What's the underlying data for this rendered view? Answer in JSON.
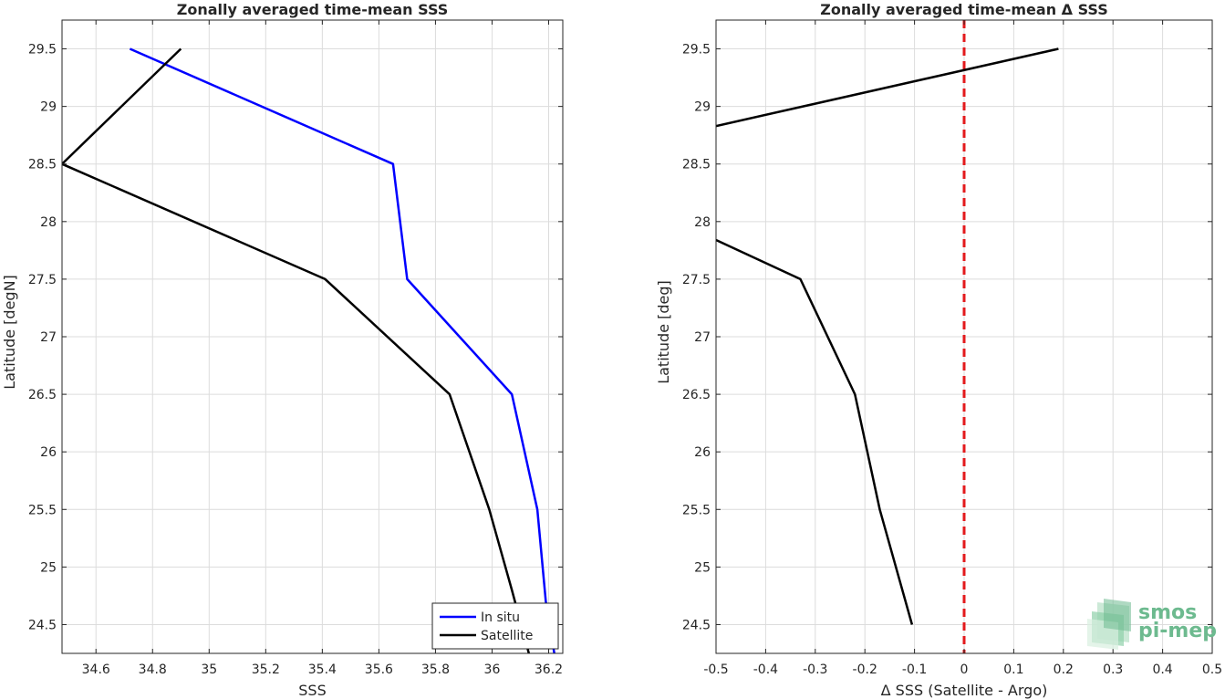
{
  "chart_data": [
    {
      "type": "line",
      "title": "Zonally averaged time-mean SSS",
      "xlabel": "SSS",
      "ylabel": "Latitude [degN]",
      "xlim": [
        34.48,
        36.25
      ],
      "ylim": [
        24.25,
        29.75
      ],
      "xticks": [
        34.6,
        34.8,
        35,
        35.2,
        35.4,
        35.6,
        35.8,
        36,
        36.2
      ],
      "xtick_labels": [
        "34.6",
        "34.8",
        "35",
        "35.2",
        "35.4",
        "35.6",
        "35.8",
        "36",
        "36.2"
      ],
      "yticks": [
        24.5,
        25,
        25.5,
        26,
        26.5,
        27,
        27.5,
        28,
        28.5,
        29,
        29.5
      ],
      "ytick_labels": [
        "24.5",
        "25",
        "25.5",
        "26",
        "26.5",
        "27",
        "27.5",
        "28",
        "28.5",
        "29",
        "29.5"
      ],
      "grid": true,
      "legend": "bottom-right",
      "series": [
        {
          "name": "In situ",
          "color": "#0000ff",
          "points": [
            [
              34.72,
              29.5
            ],
            [
              35.65,
              28.5
            ],
            [
              35.7,
              27.5
            ],
            [
              36.07,
              26.5
            ],
            [
              36.16,
              25.5
            ],
            [
              36.19,
              24.7
            ],
            [
              36.22,
              24.25
            ]
          ]
        },
        {
          "name": "Satellite",
          "color": "#000000",
          "points": [
            [
              34.9,
              29.5
            ],
            [
              34.48,
              28.5
            ],
            [
              35.41,
              27.5
            ],
            [
              35.85,
              26.5
            ],
            [
              35.99,
              25.5
            ],
            [
              36.07,
              24.8
            ],
            [
              36.13,
              24.25
            ]
          ]
        }
      ]
    },
    {
      "type": "line",
      "title": "Zonally averaged time-mean Δ SSS",
      "xlabel": "Δ SSS (Satellite - Argo)",
      "ylabel": "Latitude [deg]",
      "xlim": [
        -0.5,
        0.5
      ],
      "ylim": [
        24.25,
        29.75
      ],
      "xticks": [
        -0.5,
        -0.4,
        -0.3,
        -0.2,
        -0.1,
        0,
        0.1,
        0.2,
        0.3,
        0.4,
        0.5
      ],
      "xtick_labels": [
        "-0.5",
        "-0.4",
        "-0.3",
        "-0.2",
        "-0.1",
        "0",
        "0.1",
        "0.2",
        "0.3",
        "0.4",
        "0.5"
      ],
      "yticks": [
        24.5,
        25,
        25.5,
        26,
        26.5,
        27,
        27.5,
        28,
        28.5,
        29,
        29.5
      ],
      "ytick_labels": [
        "24.5",
        "25",
        "25.5",
        "26",
        "26.5",
        "27",
        "27.5",
        "28",
        "28.5",
        "29",
        "29.5"
      ],
      "grid": true,
      "reference_line": {
        "x": 0,
        "color": "#e31a1c",
        "style": "dashed"
      },
      "series": [
        {
          "color": "#000000",
          "segments": [
            [
              [
                0.19,
                29.5
              ],
              [
                -0.5,
                28.83
              ]
            ],
            [
              [
                -0.5,
                27.84
              ],
              [
                -0.33,
                27.5
              ],
              [
                -0.22,
                26.5
              ],
              [
                -0.17,
                25.5
              ],
              [
                -0.105,
                24.5
              ]
            ]
          ]
        }
      ]
    }
  ],
  "logo": {
    "line1": "smos",
    "line2": "pi-mep",
    "color": "#6dba8f"
  }
}
